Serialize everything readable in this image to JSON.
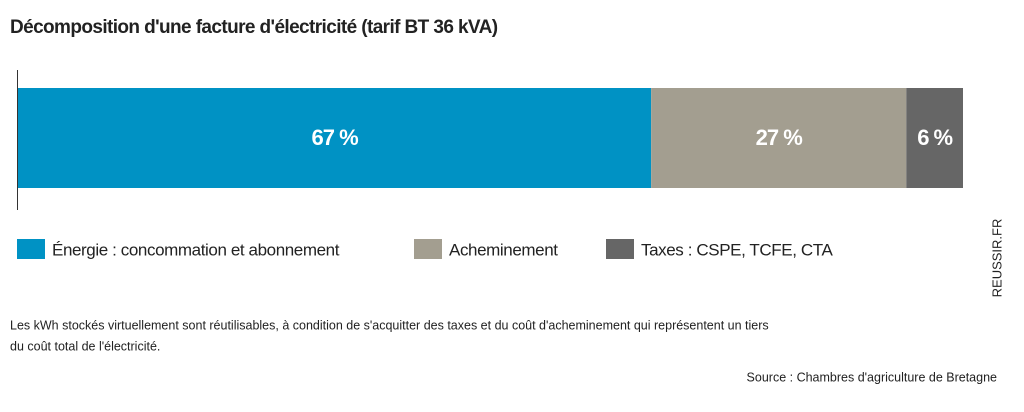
{
  "chart_data": {
    "type": "stacked_bar",
    "title": "Décomposition d'une facture d'électricité (tarif BT 36 kVA)",
    "series": [
      {
        "name": "Énergie : concommation et abonnement",
        "color": "#0092c4",
        "values": [
          67
        ],
        "value_labels": [
          "67 %"
        ]
      },
      {
        "name": "Acheminement",
        "color": "#a39e90",
        "values": [
          27
        ],
        "value_labels": [
          "27 %"
        ]
      },
      {
        "name": "Taxes : CSPE, TCFE, CTA",
        "color": "#666666",
        "values": [
          6
        ],
        "value_labels": [
          "6 %"
        ]
      }
    ],
    "note": [
      "Les kWh stockés virtuellement sont réutilisables, à condition de s'acquitter des taxes et du coût d'acheminement qui représentent un tiers",
      "du coût total de l'électricité."
    ],
    "source": "Source : Chambres d'agriculture de Bretagne",
    "watermark": "REUSSIR.FR"
  }
}
